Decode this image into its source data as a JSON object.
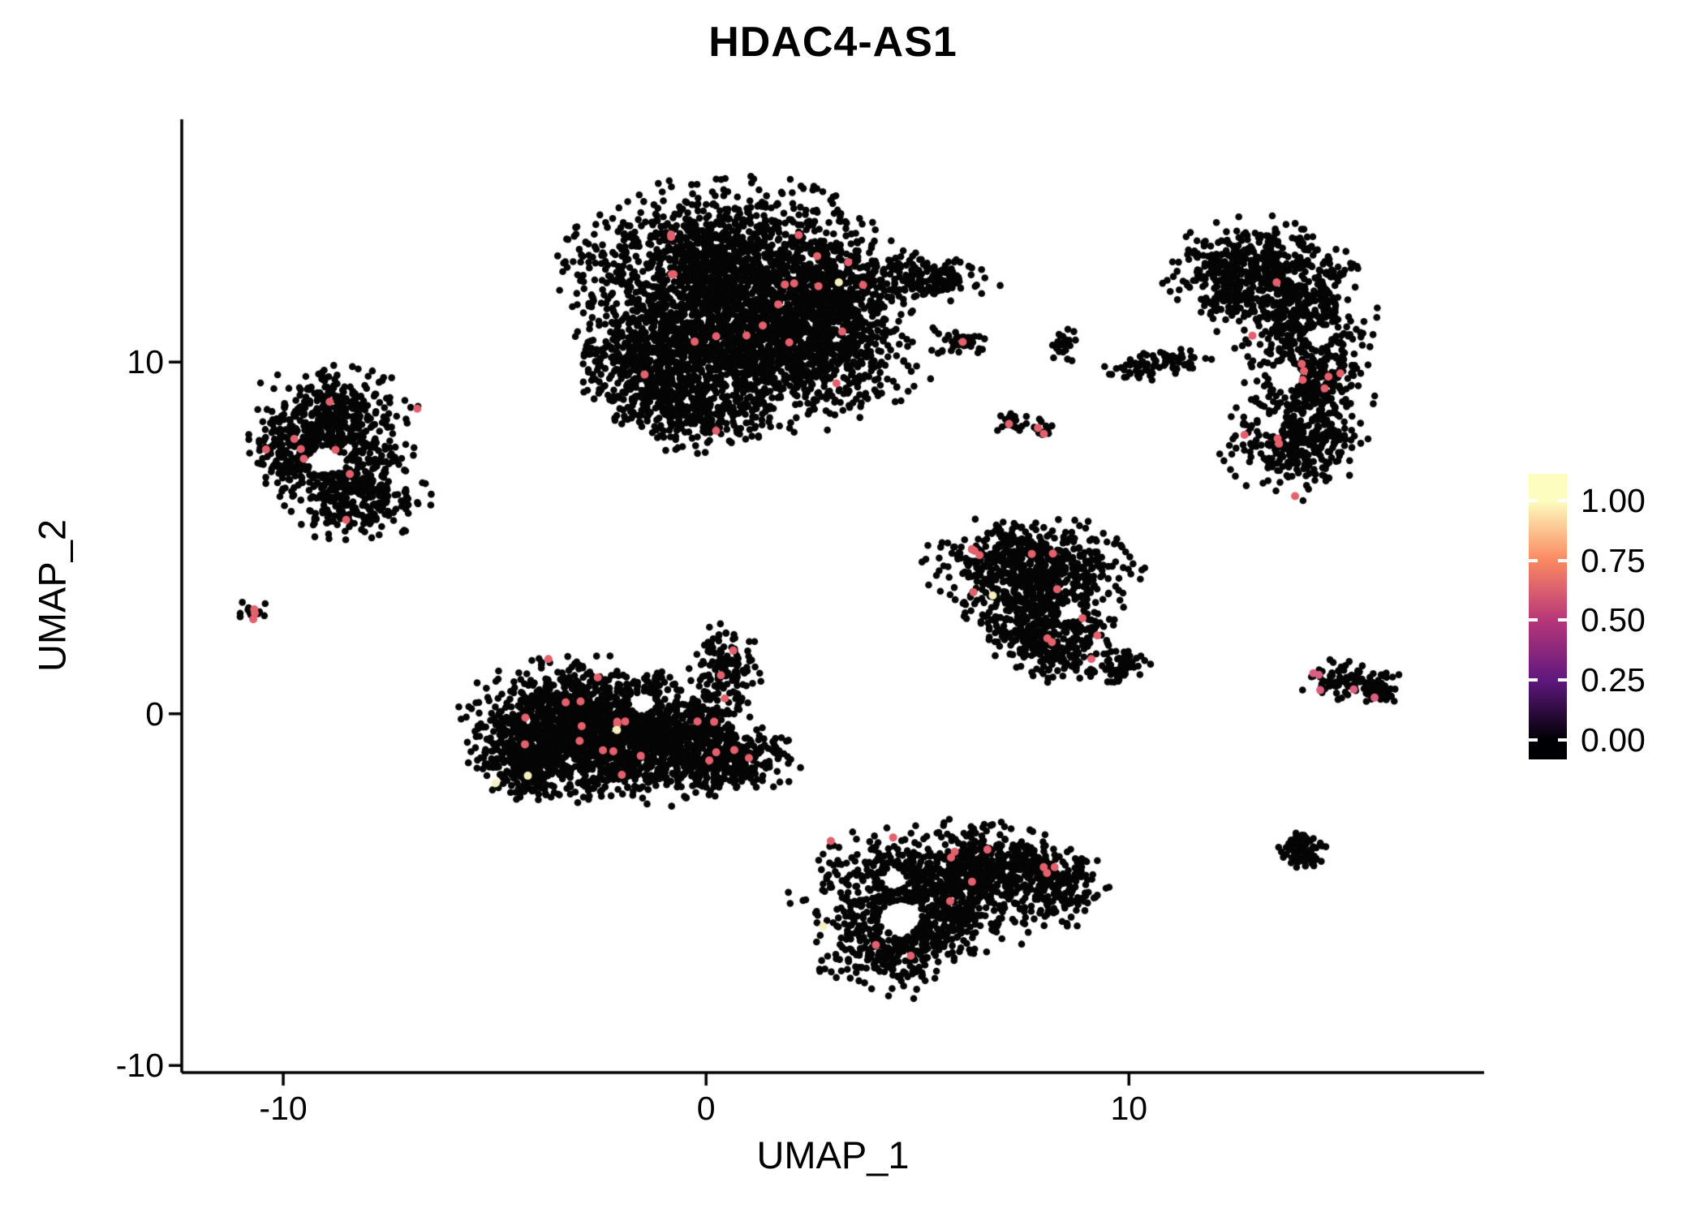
{
  "title": "HDAC4-AS1",
  "axes": {
    "x_label": "UMAP_1",
    "y_label": "UMAP_2",
    "x_tick_labels": [
      "-10",
      "0",
      "10"
    ],
    "y_tick_labels": [
      "-10",
      "0",
      "10"
    ]
  },
  "legend": {
    "tick_labels": [
      "1.00",
      "0.75",
      "0.50",
      "0.25",
      "0.00"
    ],
    "tick_values": [
      1.0,
      0.75,
      0.5,
      0.25,
      0.0
    ],
    "gradient_stops": [
      {
        "v": 0.0,
        "color": "#000004"
      },
      {
        "v": 0.25,
        "color": "#5f187f"
      },
      {
        "v": 0.5,
        "color": "#b73779"
      },
      {
        "v": 0.75,
        "color": "#fb8861"
      },
      {
        "v": 1.0,
        "color": "#fcfdbf"
      }
    ]
  },
  "chart_data": {
    "type": "scatter",
    "title": "HDAC4-AS1",
    "xlabel": "UMAP_1",
    "ylabel": "UMAP_2",
    "xlim": [
      -12.4,
      18.4
    ],
    "ylim": [
      -10.2,
      16.9
    ],
    "x_ticks": [
      -10,
      0,
      10
    ],
    "y_ticks": [
      -10,
      0,
      10
    ],
    "grid": false,
    "legend_position": "right",
    "colorbar": {
      "colormap": "magma",
      "range": [
        0.0,
        1.0
      ],
      "tick_values": [
        0.0,
        0.25,
        0.5,
        0.75,
        1.0
      ]
    },
    "seed": 12,
    "point_radius": 4.3,
    "highlight_radius": 5.0,
    "zero_expression_color": "#050505",
    "red_color": "#e4606d",
    "yellow_color": "#f6f0bd",
    "clusters": [
      {
        "name": "top-center-large",
        "red": 22,
        "yellow": 1,
        "holes": [],
        "blobs": [
          {
            "cx": 0.6,
            "cy": 12.6,
            "sx": 1.6,
            "sy": 1.1,
            "n": 1600
          },
          {
            "cx": 1.2,
            "cy": 10.3,
            "sx": 1.7,
            "sy": 0.95,
            "n": 1400
          },
          {
            "cx": -1.3,
            "cy": 10.0,
            "sx": 0.7,
            "sy": 0.8,
            "n": 350
          },
          {
            "cx": 2.9,
            "cy": 11.6,
            "sx": 0.8,
            "sy": 0.9,
            "n": 450
          },
          {
            "cx": -0.3,
            "cy": 8.6,
            "sx": 0.8,
            "sy": 0.5,
            "n": 250
          },
          {
            "cx": 5.2,
            "cy": 12.35,
            "sx": 0.75,
            "sy": 0.3,
            "n": 160
          },
          {
            "cx": 6.0,
            "cy": 10.6,
            "sx": 0.3,
            "sy": 0.2,
            "n": 35
          }
        ]
      },
      {
        "name": "left",
        "red": 9,
        "yellow": 0,
        "holes": [
          {
            "cx": -9.0,
            "cy": 7.2,
            "r": 0.4
          }
        ],
        "blobs": [
          {
            "cx": -8.9,
            "cy": 8.1,
            "sx": 0.85,
            "sy": 0.75,
            "n": 500
          },
          {
            "cx": -8.3,
            "cy": 6.3,
            "sx": 0.75,
            "sy": 0.6,
            "n": 300
          },
          {
            "cx": -9.8,
            "cy": 7.1,
            "sx": 0.4,
            "sy": 0.5,
            "n": 120
          }
        ]
      },
      {
        "name": "far-left-tiny",
        "red": 3,
        "yellow": 0,
        "holes": [],
        "blobs": [
          {
            "cx": -10.75,
            "cy": 2.95,
            "sx": 0.16,
            "sy": 0.13,
            "n": 14
          }
        ]
      },
      {
        "name": "center-left-large",
        "red": 24,
        "yellow": 3,
        "holes": [
          {
            "cx": -1.5,
            "cy": 0.3,
            "r": 0.32
          },
          {
            "cx": 0.9,
            "cy": -0.4,
            "r": 0.28
          }
        ],
        "blobs": [
          {
            "cx": -3.1,
            "cy": -0.4,
            "sx": 1.1,
            "sy": 0.85,
            "n": 1300
          },
          {
            "cx": -1.1,
            "cy": -0.7,
            "sx": 1.0,
            "sy": 0.75,
            "n": 800
          },
          {
            "cx": 0.6,
            "cy": -1.2,
            "sx": 0.7,
            "sy": 0.5,
            "n": 300
          },
          {
            "cx": 0.45,
            "cy": 1.3,
            "sx": 0.35,
            "sy": 0.55,
            "n": 130
          },
          {
            "cx": -4.3,
            "cy": -1.4,
            "sx": 0.45,
            "sy": 0.5,
            "n": 180
          }
        ]
      },
      {
        "name": "mid-right-triangle",
        "red": 12,
        "yellow": 1,
        "holes": [
          {
            "cx": 8.6,
            "cy": 2.9,
            "r": 0.28
          }
        ],
        "blobs": [
          {
            "cx": 7.7,
            "cy": 4.3,
            "sx": 1.05,
            "sy": 0.55,
            "n": 450
          },
          {
            "cx": 7.9,
            "cy": 3.0,
            "sx": 0.85,
            "sy": 0.6,
            "n": 380
          },
          {
            "cx": 8.3,
            "cy": 1.9,
            "sx": 0.55,
            "sy": 0.4,
            "n": 170
          },
          {
            "cx": 9.8,
            "cy": 1.35,
            "sx": 0.3,
            "sy": 0.22,
            "n": 60
          }
        ]
      },
      {
        "name": "bottom-center",
        "red": 12,
        "yellow": 1,
        "holes": [
          {
            "cx": 4.6,
            "cy": -5.8,
            "r": 0.5
          },
          {
            "cx": 4.45,
            "cy": -4.7,
            "r": 0.3
          }
        ],
        "blobs": [
          {
            "cx": 5.3,
            "cy": -5.0,
            "sx": 1.3,
            "sy": 0.8,
            "n": 800
          },
          {
            "cx": 6.8,
            "cy": -4.3,
            "sx": 0.8,
            "sy": 0.55,
            "n": 300
          },
          {
            "cx": 4.4,
            "cy": -6.6,
            "sx": 0.8,
            "sy": 0.6,
            "n": 300
          },
          {
            "cx": 8.4,
            "cy": -4.9,
            "sx": 0.45,
            "sy": 0.5,
            "n": 150
          }
        ]
      },
      {
        "name": "right-tall",
        "red": 12,
        "yellow": 0,
        "holes": [
          {
            "cx": 13.7,
            "cy": 9.6,
            "r": 0.4
          },
          {
            "cx": 14.5,
            "cy": 10.7,
            "r": 0.3
          },
          {
            "cx": 13.35,
            "cy": 8.2,
            "r": 0.3
          }
        ],
        "blobs": [
          {
            "cx": 13.1,
            "cy": 12.7,
            "sx": 0.95,
            "sy": 0.6,
            "n": 400
          },
          {
            "cx": 14.1,
            "cy": 11.3,
            "sx": 0.7,
            "sy": 0.8,
            "n": 350
          },
          {
            "cx": 14.3,
            "cy": 9.4,
            "sx": 0.65,
            "sy": 0.8,
            "n": 330
          },
          {
            "cx": 13.9,
            "cy": 7.6,
            "sx": 0.75,
            "sy": 0.6,
            "n": 280
          },
          {
            "cx": 12.3,
            "cy": 12.0,
            "sx": 0.35,
            "sy": 0.45,
            "n": 100
          }
        ]
      },
      {
        "name": "small-top-1",
        "red": 0,
        "yellow": 0,
        "holes": [],
        "blobs": [
          {
            "cx": 8.45,
            "cy": 10.45,
            "sx": 0.18,
            "sy": 0.22,
            "n": 22
          }
        ]
      },
      {
        "name": "small-top-2",
        "red": 0,
        "yellow": 0,
        "holes": [],
        "blobs": [
          {
            "cx": 10.1,
            "cy": 9.8,
            "sx": 0.3,
            "sy": 0.15,
            "n": 35
          },
          {
            "cx": 11.0,
            "cy": 10.1,
            "sx": 0.4,
            "sy": 0.17,
            "n": 45
          }
        ]
      },
      {
        "name": "small-top-3",
        "red": 3,
        "yellow": 0,
        "holes": [],
        "blobs": [
          {
            "cx": 7.25,
            "cy": 8.3,
            "sx": 0.2,
            "sy": 0.15,
            "n": 18
          },
          {
            "cx": 7.9,
            "cy": 8.1,
            "sx": 0.15,
            "sy": 0.12,
            "n": 12
          }
        ]
      },
      {
        "name": "right-small",
        "red": 5,
        "yellow": 0,
        "holes": [],
        "highlight_color": "#dd5f80",
        "blobs": [
          {
            "cx": 15.2,
            "cy": 0.95,
            "sx": 0.5,
            "sy": 0.28,
            "n": 110
          },
          {
            "cx": 16.0,
            "cy": 0.6,
            "sx": 0.18,
            "sy": 0.12,
            "n": 25
          }
        ]
      },
      {
        "name": "bottom-right-small",
        "red": 0,
        "yellow": 0,
        "holes": [],
        "blobs": [
          {
            "cx": 14.1,
            "cy": -3.85,
            "sx": 0.28,
            "sy": 0.28,
            "n": 70
          }
        ]
      }
    ]
  }
}
